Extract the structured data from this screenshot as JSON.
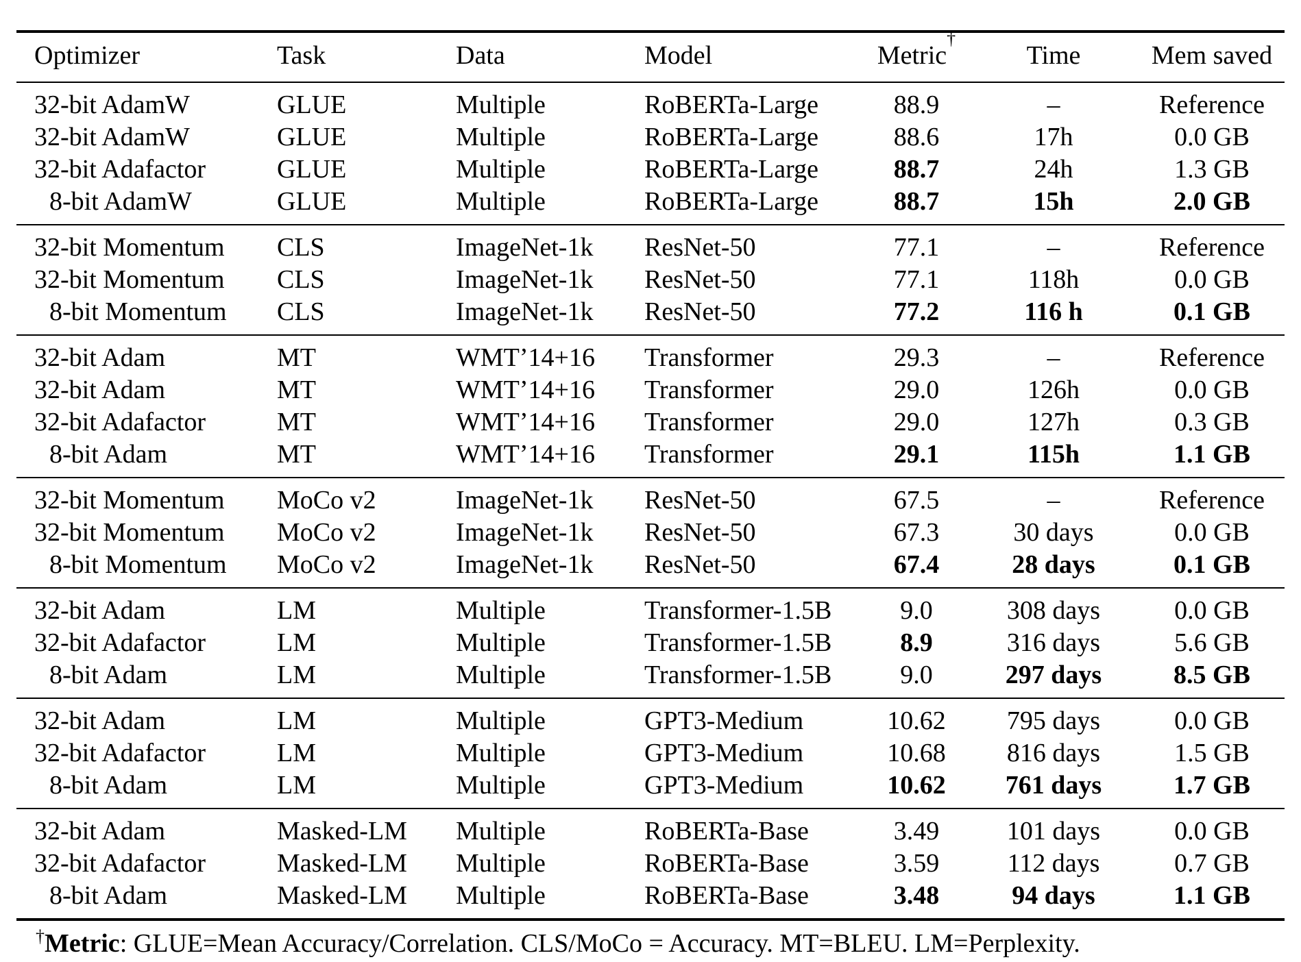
{
  "table": {
    "header": {
      "columns": [
        {
          "label": "Optimizer",
          "align": "left"
        },
        {
          "label": "Task",
          "align": "left"
        },
        {
          "label": "Data",
          "align": "left"
        },
        {
          "label": "Model",
          "align": "left"
        },
        {
          "label": "Metric",
          "sup": "†",
          "align": "center"
        },
        {
          "label": "Time",
          "align": "center"
        },
        {
          "label": "Mem saved",
          "align": "center"
        }
      ]
    },
    "groups": [
      {
        "rows": [
          {
            "optimizer": "32-bit AdamW",
            "task": "GLUE",
            "data": "Multiple",
            "model": "RoBERTa-Large",
            "metric": "88.9",
            "time": "–",
            "mem": "Reference"
          },
          {
            "optimizer": "32-bit AdamW",
            "task": "GLUE",
            "data": "Multiple",
            "model": "RoBERTa-Large",
            "metric": "88.6",
            "time": "17h",
            "mem": "0.0 GB"
          },
          {
            "optimizer": "32-bit Adafactor",
            "task": "GLUE",
            "data": "Multiple",
            "model": "RoBERTa-Large",
            "metric": "88.7",
            "metric_bold": true,
            "time": "24h",
            "mem": "1.3 GB"
          },
          {
            "optimizer": "8-bit AdamW",
            "indent": true,
            "task": "GLUE",
            "data": "Multiple",
            "model": "RoBERTa-Large",
            "metric": "88.7",
            "metric_bold": true,
            "time": "15h",
            "time_bold": true,
            "mem": "2.0 GB",
            "mem_bold": true
          }
        ]
      },
      {
        "rows": [
          {
            "optimizer": "32-bit Momentum",
            "task": "CLS",
            "data": "ImageNet-1k",
            "model": "ResNet-50",
            "metric": "77.1",
            "time": "–",
            "mem": "Reference"
          },
          {
            "optimizer": "32-bit Momentum",
            "task": "CLS",
            "data": "ImageNet-1k",
            "model": "ResNet-50",
            "metric": "77.1",
            "time": "118h",
            "mem": "0.0 GB"
          },
          {
            "optimizer": "8-bit Momentum",
            "indent": true,
            "task": "CLS",
            "data": "ImageNet-1k",
            "model": "ResNet-50",
            "metric": "77.2",
            "metric_bold": true,
            "time": "116 h",
            "time_bold": true,
            "mem": "0.1 GB",
            "mem_bold": true
          }
        ]
      },
      {
        "rows": [
          {
            "optimizer": "32-bit Adam",
            "task": "MT",
            "data": "WMT’14+16",
            "model": "Transformer",
            "metric": "29.3",
            "time": "–",
            "mem": "Reference"
          },
          {
            "optimizer": "32-bit Adam",
            "task": "MT",
            "data": "WMT’14+16",
            "model": "Transformer",
            "metric": "29.0",
            "time": "126h",
            "mem": "0.0 GB"
          },
          {
            "optimizer": "32-bit Adafactor",
            "task": "MT",
            "data": "WMT’14+16",
            "model": "Transformer",
            "metric": "29.0",
            "time": "127h",
            "mem": "0.3 GB"
          },
          {
            "optimizer": "8-bit Adam",
            "indent": true,
            "task": "MT",
            "data": "WMT’14+16",
            "model": "Transformer",
            "metric": "29.1",
            "metric_bold": true,
            "time": "115h",
            "time_bold": true,
            "mem": "1.1 GB",
            "mem_bold": true
          }
        ]
      },
      {
        "rows": [
          {
            "optimizer": "32-bit Momentum",
            "task": "MoCo v2",
            "data": "ImageNet-1k",
            "model": "ResNet-50",
            "metric": "67.5",
            "time": "–",
            "mem": "Reference"
          },
          {
            "optimizer": "32-bit Momentum",
            "task": "MoCo v2",
            "data": "ImageNet-1k",
            "model": "ResNet-50",
            "metric": "67.3",
            "time": "30 days",
            "mem": "0.0 GB"
          },
          {
            "optimizer": "8-bit Momentum",
            "indent": true,
            "task": "MoCo v2",
            "data": "ImageNet-1k",
            "model": "ResNet-50",
            "metric": "67.4",
            "metric_bold": true,
            "time": "28 days",
            "time_bold": true,
            "mem": "0.1 GB",
            "mem_bold": true
          }
        ]
      },
      {
        "rows": [
          {
            "optimizer": "32-bit Adam",
            "task": "LM",
            "data": "Multiple",
            "model": "Transformer-1.5B",
            "metric": "9.0",
            "time": "308 days",
            "mem": "0.0 GB"
          },
          {
            "optimizer": "32-bit Adafactor",
            "task": "LM",
            "data": "Multiple",
            "model": "Transformer-1.5B",
            "metric": "8.9",
            "metric_bold": true,
            "time": "316 days",
            "mem": "5.6 GB"
          },
          {
            "optimizer": "8-bit Adam",
            "indent": true,
            "task": "LM",
            "data": "Multiple",
            "model": "Transformer-1.5B",
            "metric": "9.0",
            "time": "297 days",
            "time_bold": true,
            "mem": "8.5 GB",
            "mem_bold": true
          }
        ]
      },
      {
        "rows": [
          {
            "optimizer": "32-bit Adam",
            "task": "LM",
            "data": "Multiple",
            "model": "GPT3-Medium",
            "metric": "10.62",
            "time": "795 days",
            "mem": "0.0 GB"
          },
          {
            "optimizer": "32-bit Adafactor",
            "task": "LM",
            "data": "Multiple",
            "model": "GPT3-Medium",
            "metric": "10.68",
            "time": "816 days",
            "mem": "1.5 GB"
          },
          {
            "optimizer": "8-bit Adam",
            "indent": true,
            "task": "LM",
            "data": "Multiple",
            "model": "GPT3-Medium",
            "metric": "10.62",
            "metric_bold": true,
            "time": "761 days",
            "time_bold": true,
            "mem": "1.7 GB",
            "mem_bold": true
          }
        ]
      },
      {
        "rows": [
          {
            "optimizer": "32-bit Adam",
            "task": "Masked-LM",
            "data": "Multiple",
            "model": "RoBERTa-Base",
            "metric": "3.49",
            "time": "101 days",
            "mem": "0.0 GB"
          },
          {
            "optimizer": "32-bit Adafactor",
            "task": "Masked-LM",
            "data": "Multiple",
            "model": "RoBERTa-Base",
            "metric": "3.59",
            "time": "112 days",
            "mem": "0.7 GB"
          },
          {
            "optimizer": "8-bit Adam",
            "indent": true,
            "task": "Masked-LM",
            "data": "Multiple",
            "model": "RoBERTa-Base",
            "metric": "3.48",
            "metric_bold": true,
            "time": "94 days",
            "time_bold": true,
            "mem": "1.1 GB",
            "mem_bold": true
          }
        ]
      }
    ]
  },
  "footnote": {
    "dagger": "†",
    "label": "Metric",
    "text": ": GLUE=Mean Accuracy/Correlation. CLS/MoCo = Accuracy. MT=BLEU. LM=Perplexity."
  }
}
